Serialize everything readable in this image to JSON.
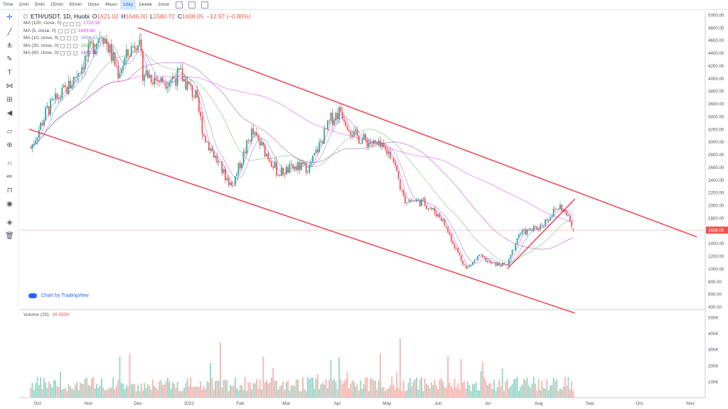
{
  "toolbar": {
    "timeframes": [
      "Time",
      "1min",
      "5min",
      "15min",
      "30min",
      "1hour",
      "4hour",
      "1day",
      "1week",
      "1mon"
    ],
    "active_timeframe": "1day",
    "icons": [
      "indicator-icon",
      "settings-icon",
      "fullscreen-icon"
    ]
  },
  "lefttools": [
    "crosshair-icon",
    "trend-line-icon",
    "pitchfork-icon",
    "brush-icon",
    "text-icon",
    "pattern-icon",
    "measure-icon",
    "back-arrow-icon",
    "ruler-icon",
    "zoom-icon",
    "magnet-icon",
    "lock-drawing-icon",
    "lock-icon",
    "eye-icon",
    "layers-icon",
    "trash-icon"
  ],
  "legend": {
    "symbol": "ETH/USDT, 1D, Huobi",
    "open_label": "O",
    "open": "1621.02",
    "high_label": "H",
    "high": "1646.00",
    "low_label": "L",
    "low": "1580.72",
    "close_label": "C",
    "close": "1608.05",
    "change": "−12.97 (−0.80%)",
    "mas": [
      {
        "label": "MA (120, close, 0)",
        "value": "1728.58",
        "color": "#e040fb"
      },
      {
        "label": "MA (5, close, 0)",
        "value": "1686.88",
        "color": "#e040fb"
      },
      {
        "label": "MA (10, close, 0)",
        "value": "1604.52",
        "color": "#7986cb"
      },
      {
        "label": "MA (30, close, 0)",
        "value": "1690.49",
        "color": "#66bb6a"
      },
      {
        "label": "MA (60, close, 0)",
        "value": "1471.94",
        "color": "#ab47bc"
      }
    ]
  },
  "volume_legend": {
    "label": "Volume (20)",
    "value": "26.955K"
  },
  "watermark": "Chart by TradingView",
  "price_tag": "1608.05",
  "colors": {
    "up": "#26a69a",
    "down": "#ef5350",
    "up_vol": "#9bd8c9",
    "down_vol": "#f7b7b3",
    "channel": "#f23645"
  },
  "chart_data": {
    "type": "candlestick",
    "title": "ETH/USDT, 1D, Huobi",
    "y_axis_ticks": [
      "5000.00",
      "4800.00",
      "4600.00",
      "4400.00",
      "4200.00",
      "4000.00",
      "3800.00",
      "3600.00",
      "3400.00",
      "3200.00",
      "3000.00",
      "2800.00",
      "2600.00",
      "2400.00",
      "2200.00",
      "2000.00",
      "1800.00",
      "1600.00",
      "1400.00",
      "1200.00",
      "1000.00",
      "800.00",
      "600.00",
      "400.00"
    ],
    "ylim": [
      300,
      5000
    ],
    "x_axis_ticks": [
      "Oct",
      "Nov",
      "Dec",
      "2022",
      "Feb",
      "Mar",
      "Apr",
      "May",
      "Jun",
      "Jul",
      "Aug",
      "Sep",
      "Oct",
      "Nov"
    ],
    "volume_ticks": [
      "500K",
      "400K",
      "300K",
      "200K",
      "100K"
    ],
    "volume_ylim": [
      0,
      500000
    ],
    "price_path": [
      {
        "date": "2021-09-27",
        "close": 2900
      },
      {
        "date": "2021-10-07",
        "close": 3500
      },
      {
        "date": "2021-10-21",
        "close": 3900
      },
      {
        "date": "2021-11-09",
        "close": 4750
      },
      {
        "date": "2021-11-19",
        "close": 4100
      },
      {
        "date": "2021-12-01",
        "close": 4650
      },
      {
        "date": "2021-12-04",
        "close": 4100
      },
      {
        "date": "2021-12-15",
        "close": 3950
      },
      {
        "date": "2021-12-27",
        "close": 4050
      },
      {
        "date": "2022-01-05",
        "close": 3700
      },
      {
        "date": "2022-01-10",
        "close": 3100
      },
      {
        "date": "2022-01-22",
        "close": 2500
      },
      {
        "date": "2022-01-27",
        "close": 2300
      },
      {
        "date": "2022-02-08",
        "close": 3150
      },
      {
        "date": "2022-02-20",
        "close": 2700
      },
      {
        "date": "2022-02-24",
        "close": 2500
      },
      {
        "date": "2022-03-07",
        "close": 2600
      },
      {
        "date": "2022-03-15",
        "close": 2600
      },
      {
        "date": "2022-03-28",
        "close": 3350
      },
      {
        "date": "2022-04-03",
        "close": 3500
      },
      {
        "date": "2022-04-11",
        "close": 3100
      },
      {
        "date": "2022-04-24",
        "close": 2950
      },
      {
        "date": "2022-05-04",
        "close": 2800
      },
      {
        "date": "2022-05-11",
        "close": 2100
      },
      {
        "date": "2022-05-23",
        "close": 2050
      },
      {
        "date": "2022-06-03",
        "close": 1800
      },
      {
        "date": "2022-06-13",
        "close": 1250
      },
      {
        "date": "2022-06-18",
        "close": 1000
      },
      {
        "date": "2022-06-26",
        "close": 1200
      },
      {
        "date": "2022-07-03",
        "close": 1080
      },
      {
        "date": "2022-07-13",
        "close": 1050
      },
      {
        "date": "2022-07-20",
        "close": 1550
      },
      {
        "date": "2022-08-01",
        "close": 1650
      },
      {
        "date": "2022-08-12",
        "close": 1950
      },
      {
        "date": "2022-08-14",
        "close": 1980
      },
      {
        "date": "2022-08-19",
        "close": 1800
      },
      {
        "date": "2022-08-22",
        "close": 1608
      }
    ],
    "drawings": [
      {
        "name": "channel-upper-line",
        "points": [
          [
            "2021-12-01",
            4800
          ],
          [
            "2022-11-05",
            1500
          ]
        ]
      },
      {
        "name": "channel-lower-line",
        "points": [
          [
            "2021-09-26",
            3200
          ],
          [
            "2022-08-23",
            300
          ]
        ]
      },
      {
        "name": "support-trendline",
        "points": [
          [
            "2022-07-13",
            1000
          ],
          [
            "2022-08-23",
            2100
          ]
        ]
      }
    ],
    "current_price": 1608.05
  }
}
